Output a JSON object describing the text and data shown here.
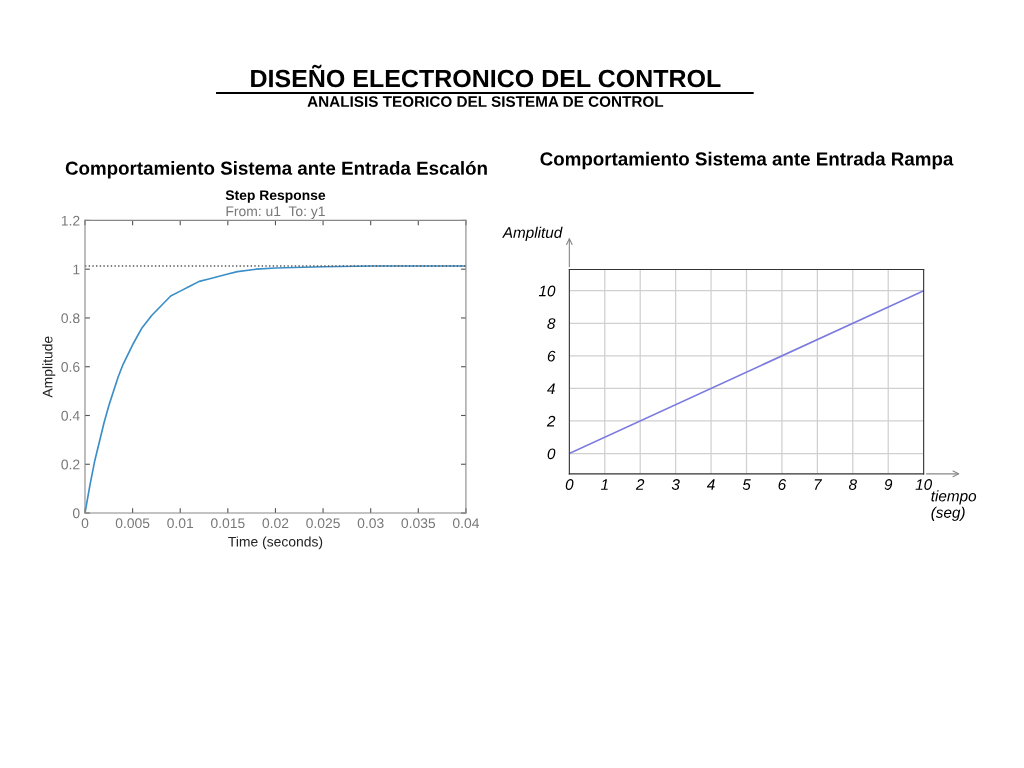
{
  "chart_data": [
    {
      "type": "line",
      "title": "Step Response",
      "subtitle": "From: u1  To: y1",
      "xlabel": "Time (seconds)",
      "ylabel": "Amplitude",
      "annotations": [
        "DISEÑO ELECTRONICO DEL CONTROL",
        "ANALISIS TEORICO DEL SISTEMA DE CONTROL",
        "Comportamiento Sistema ante Entrada Escalón"
      ],
      "x": [
        0,
        0.0005,
        0.001,
        0.0015,
        0.002,
        0.0025,
        0.003,
        0.0035,
        0.004,
        0.0045,
        0.005,
        0.006,
        0.007,
        0.008,
        0.009,
        0.01,
        0.011,
        0.012,
        0.013,
        0.014,
        0.015,
        0.016,
        0.018,
        0.02,
        0.025,
        0.03,
        0.04
      ],
      "series": [
        {
          "color": "#3b8fc8",
          "values": [
            0,
            0.11,
            0.21,
            0.29,
            0.37,
            0.44,
            0.5,
            0.56,
            0.61,
            0.65,
            0.69,
            0.76,
            0.81,
            0.85,
            0.89,
            0.91,
            0.93,
            0.95,
            0.96,
            0.97,
            0.98,
            0.99,
            1.0,
            1.005,
            1.01,
            1.013,
            1.013
          ]
        }
      ],
      "xlim": [
        0,
        0.04
      ],
      "xticks": [
        0,
        0.005,
        0.01,
        0.015,
        0.02,
        0.025,
        0.03,
        0.035,
        0.04
      ],
      "ylim": [
        0,
        1.2
      ],
      "yticks": [
        0,
        0.2,
        0.4,
        0.6,
        0.8,
        1,
        1.2
      ],
      "ref_lines": [
        {
          "axis": "y",
          "value": 1.013,
          "color": "#555555",
          "line_style": "dotted"
        }
      ],
      "grid": false,
      "line_style": "solid"
    },
    {
      "type": "line",
      "title": "Comportamiento Sistema ante Entrada Rampa",
      "xlabel": "tiempo\n(seg)",
      "ylabel": "Amplitud",
      "x": [
        0,
        10
      ],
      "series": [
        {
          "color": "#7b7be0",
          "values": [
            0,
            10
          ]
        }
      ],
      "xlim": [
        0,
        10
      ],
      "xticks": [
        0,
        1,
        2,
        3,
        4,
        5,
        6,
        7,
        8,
        9,
        10
      ],
      "ylim": [
        -1.25,
        11.3
      ],
      "yticks": [
        0,
        2,
        4,
        6,
        8,
        10
      ],
      "grid": true,
      "line_style": "solid"
    }
  ]
}
